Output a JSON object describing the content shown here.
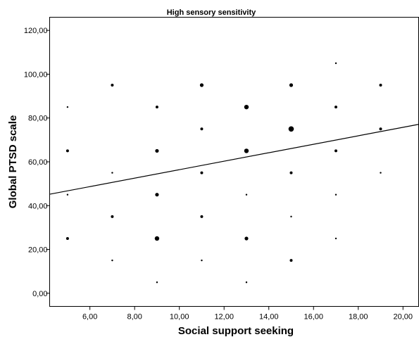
{
  "chart_data": {
    "type": "scatter",
    "title": "High sensory sensitivity",
    "xlabel": "Social support seeking",
    "ylabel": "Global PTSD scale",
    "xlim": [
      4.2,
      20.7
    ],
    "ylim": [
      -6,
      126
    ],
    "grid": false,
    "x_ticks": [
      "6,00",
      "8,00",
      "10,00",
      "12,00",
      "14,00",
      "16,00",
      "18,00",
      "20,00"
    ],
    "y_ticks": [
      "0,00",
      "20,00",
      "40,00",
      "60,00",
      "80,00",
      "100,00",
      "120,00"
    ],
    "x_tick_values": [
      6,
      8,
      10,
      12,
      14,
      16,
      18,
      20
    ],
    "y_tick_values": [
      0,
      20,
      40,
      60,
      80,
      100,
      120
    ],
    "points": [
      {
        "x": 5,
        "y": 25,
        "size": 1
      },
      {
        "x": 5,
        "y": 45,
        "size": 0
      },
      {
        "x": 5,
        "y": 65,
        "size": 1
      },
      {
        "x": 5,
        "y": 85,
        "size": 0
      },
      {
        "x": 7,
        "y": 15,
        "size": 0
      },
      {
        "x": 7,
        "y": 35,
        "size": 1
      },
      {
        "x": 7,
        "y": 55,
        "size": 0
      },
      {
        "x": 7,
        "y": 95,
        "size": 1
      },
      {
        "x": 9,
        "y": 5,
        "size": 0
      },
      {
        "x": 9,
        "y": 25,
        "size": 3
      },
      {
        "x": 9,
        "y": 45,
        "size": 2
      },
      {
        "x": 9,
        "y": 65,
        "size": 2
      },
      {
        "x": 9,
        "y": 85,
        "size": 1
      },
      {
        "x": 11,
        "y": 15,
        "size": 0
      },
      {
        "x": 11,
        "y": 35,
        "size": 1
      },
      {
        "x": 11,
        "y": 55,
        "size": 1
      },
      {
        "x": 11,
        "y": 75,
        "size": 1
      },
      {
        "x": 11,
        "y": 95,
        "size": 2
      },
      {
        "x": 13,
        "y": 5,
        "size": 0
      },
      {
        "x": 13,
        "y": 25,
        "size": 2
      },
      {
        "x": 13,
        "y": 45,
        "size": 0
      },
      {
        "x": 13,
        "y": 65,
        "size": 3
      },
      {
        "x": 13,
        "y": 85,
        "size": 3
      },
      {
        "x": 15,
        "y": 15,
        "size": 1
      },
      {
        "x": 15,
        "y": 35,
        "size": 0
      },
      {
        "x": 15,
        "y": 55,
        "size": 1
      },
      {
        "x": 15,
        "y": 75,
        "size": 4
      },
      {
        "x": 15,
        "y": 95,
        "size": 2
      },
      {
        "x": 17,
        "y": 25,
        "size": 0
      },
      {
        "x": 17,
        "y": 45,
        "size": 0
      },
      {
        "x": 17,
        "y": 65,
        "size": 1
      },
      {
        "x": 17,
        "y": 85,
        "size": 1
      },
      {
        "x": 17,
        "y": 105,
        "size": 0
      },
      {
        "x": 19,
        "y": 55,
        "size": 0
      },
      {
        "x": 19,
        "y": 75,
        "size": 1
      },
      {
        "x": 19,
        "y": 95,
        "size": 1
      }
    ],
    "fit_line": {
      "x": [
        4.2,
        20.7
      ],
      "y": [
        45.2,
        77.1
      ]
    },
    "colors": {
      "marker": "#000000",
      "line": "#000000",
      "background": "#ffffff"
    }
  }
}
